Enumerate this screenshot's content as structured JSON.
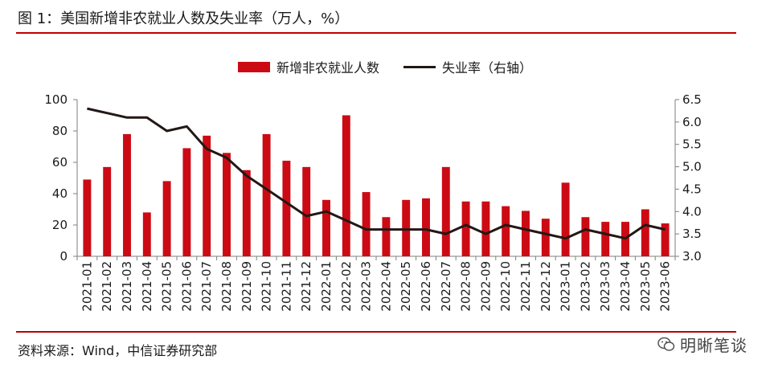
{
  "header": {
    "title": "图 1：美国新增非农就业人数及失业率（万人，%）"
  },
  "footer": {
    "source": "资料来源：Wind，中信证券研究部",
    "watermark": "明晰笔谈"
  },
  "colors": {
    "bar": "#cc0a14",
    "line": "#231815",
    "rule": "#c00000"
  },
  "chart_data": {
    "type": "bar+line",
    "categories": [
      "2021-01",
      "2021-02",
      "2021-03",
      "2021-04",
      "2021-05",
      "2021-06",
      "2021-07",
      "2021-08",
      "2021-09",
      "2021-10",
      "2021-11",
      "2021-12",
      "2022-01",
      "2022-02",
      "2022-03",
      "2022-04",
      "2022-05",
      "2022-06",
      "2022-07",
      "2022-08",
      "2022-09",
      "2022-10",
      "2022-11",
      "2022-12",
      "2023-01",
      "2023-02",
      "2023-03",
      "2023-04",
      "2023-05",
      "2023-06"
    ],
    "series": [
      {
        "name": "新增非农就业人数",
        "type": "bar",
        "axis": "left",
        "values": [
          49,
          57,
          78,
          28,
          48,
          69,
          77,
          66,
          55,
          78,
          61,
          57,
          36,
          90,
          41,
          25,
          36,
          37,
          57,
          35,
          35,
          32,
          29,
          24,
          47,
          25,
          22,
          22,
          30,
          21
        ]
      },
      {
        "name": "失业率（右轴）",
        "type": "line",
        "axis": "right",
        "values": [
          6.3,
          6.2,
          6.1,
          6.1,
          5.8,
          5.9,
          5.4,
          5.2,
          4.8,
          4.5,
          4.2,
          3.9,
          4.0,
          3.8,
          3.6,
          3.6,
          3.6,
          3.6,
          3.5,
          3.7,
          3.5,
          3.7,
          3.6,
          3.5,
          3.4,
          3.6,
          3.5,
          3.4,
          3.7,
          3.6
        ]
      }
    ],
    "y_left": {
      "min": 0,
      "max": 100,
      "ticks": [
        "0",
        "20",
        "40",
        "60",
        "80",
        "100"
      ]
    },
    "y_right": {
      "min": 3.0,
      "max": 6.5,
      "ticks": [
        "3.0",
        "3.5",
        "4.0",
        "4.5",
        "5.0",
        "5.5",
        "6.0",
        "6.5"
      ]
    },
    "legend_position": "top-center",
    "grid": false
  }
}
